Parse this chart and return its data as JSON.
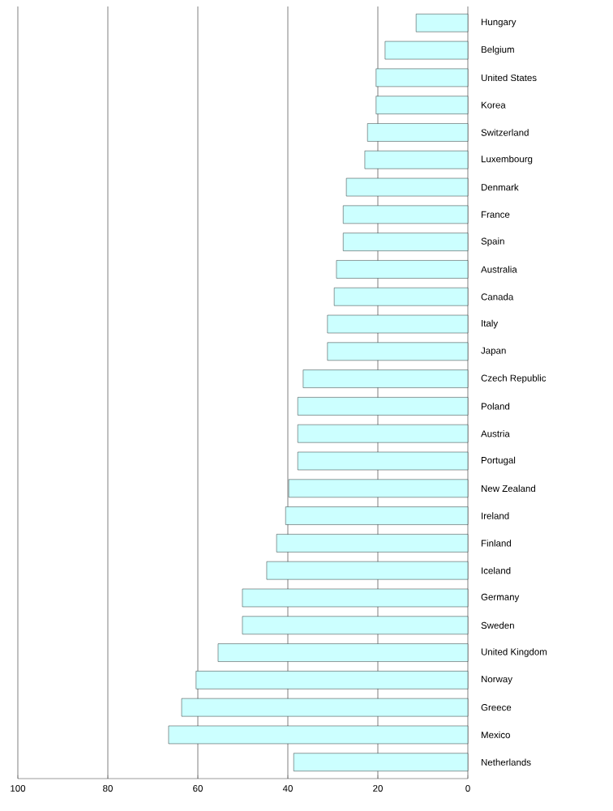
{
  "chart_data": {
    "type": "bar",
    "orientation": "horizontal",
    "categories": [
      "Hungary",
      "Belgium",
      "United States",
      "Korea",
      "Switzerland",
      "Luxembourg",
      "Denmark",
      "France",
      "Spain",
      "Australia",
      "Canada",
      "Italy",
      "Japan",
      "Czech Republic",
      "Poland",
      "Austria",
      "Portugal",
      "New Zealand",
      "Ireland",
      "Finland",
      "Iceland",
      "Germany",
      "Sweden",
      "United Kingdom",
      "Norway",
      "Greece",
      "Mexico",
      "Netherlands"
    ],
    "values": [
      11.5,
      18.4,
      20.4,
      20.4,
      22.3,
      22.9,
      27,
      27.7,
      27.7,
      29.2,
      29.7,
      31.2,
      31.2,
      36.6,
      37.8,
      37.8,
      37.8,
      39.8,
      40.5,
      42.5,
      44.7,
      50.1,
      50.1,
      55.5,
      60.4,
      63.6,
      66.5,
      38.7
    ],
    "color": "#ccffff",
    "xlim": [
      100,
      0
    ],
    "xticks": [
      0,
      20,
      40,
      60,
      80,
      100
    ],
    "grid": "x"
  }
}
